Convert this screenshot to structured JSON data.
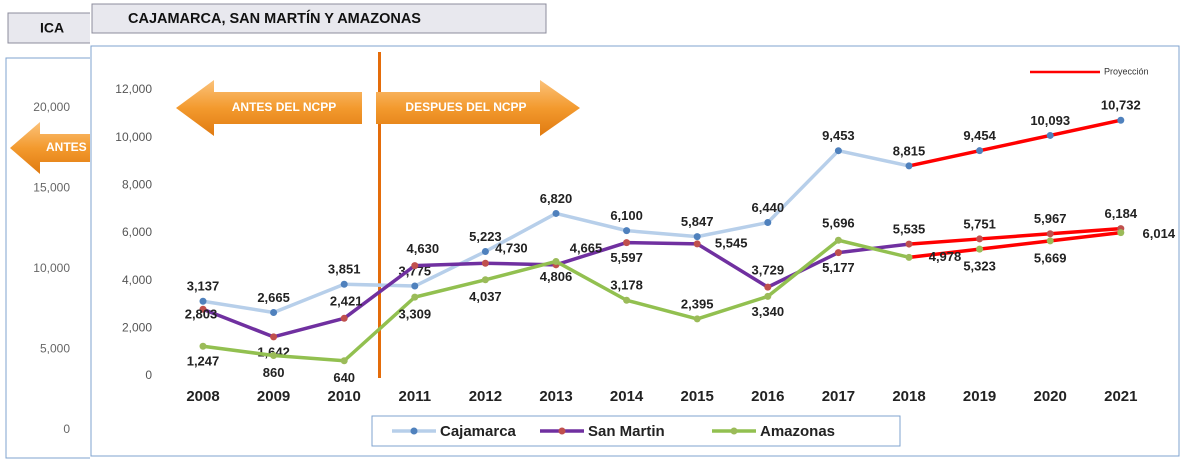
{
  "background_panel": {
    "title": "ICA",
    "yticks": [
      {
        "value": 20000,
        "label": "20,000"
      },
      {
        "value": 15000,
        "label": "15,000"
      },
      {
        "value": 10000,
        "label": "10,000"
      },
      {
        "value": 5000,
        "label": "5,000"
      },
      0
    ],
    "ylim": [
      0,
      20000
    ],
    "annotation": "ANTES DEL NCPP"
  },
  "chart_data": {
    "type": "line",
    "title": "CAJAMARCA, SAN MARTÍN Y AMAZONAS",
    "categories": [
      "2008",
      "2009",
      "2010",
      "2011",
      "2012",
      "2013",
      "2014",
      "2015",
      "2016",
      "2017",
      "2018",
      "2019",
      "2020",
      "2021"
    ],
    "series": [
      {
        "name": "Cajamarca",
        "color": "#b7cfea",
        "marker_color": "#4f81bd",
        "values": [
          3137,
          2665,
          3851,
          3775,
          5223,
          6820,
          6100,
          5847,
          6440,
          9453,
          8815,
          9454,
          10093,
          10732
        ],
        "value_labels": [
          "3,137",
          "2,665",
          "3,851",
          "3,775",
          "5,223",
          "6,820",
          "6,100",
          "5,847",
          "6,440",
          "9,453",
          "8,815",
          "9,454",
          "10,093",
          "10,732"
        ]
      },
      {
        "name": "San Martin",
        "color": "#7030a0",
        "marker_color": "#c0504d",
        "values": [
          2803,
          1642,
          2421,
          4630,
          4730,
          4665,
          5597,
          5545,
          3729,
          5177,
          5535,
          5751,
          5967,
          6184
        ],
        "value_labels": [
          "2,803",
          "1,642",
          "2,421",
          "4,630",
          "4,730",
          "4,665",
          "5,597",
          "5,545",
          "3,729",
          "5,177",
          "5,535",
          "5,751",
          "5,967",
          "6,184"
        ]
      },
      {
        "name": "Amazonas",
        "color": "#92c050",
        "marker_color": "#9bbb59",
        "values": [
          1247,
          860,
          640,
          3309,
          4037,
          4806,
          3178,
          2395,
          3340,
          5696,
          4978,
          5323,
          5669,
          6014
        ],
        "value_labels": [
          "1,247",
          "860",
          "640",
          "3,309",
          "4,037",
          "4,806",
          "3,178",
          "2,395",
          "3,340",
          "5,696",
          "4,978",
          "5,323",
          "5,669",
          "6,014"
        ]
      }
    ],
    "projection": {
      "name": "Proyección",
      "color": "#ff0000",
      "from": "2018"
    },
    "divider_color": "#e46c0a",
    "annotations": [
      "ANTES DEL NCPP",
      "DESPUES DEL NCPP"
    ],
    "ylim": [
      0,
      12000
    ],
    "yticks": [
      0,
      {
        "value": 2000,
        "label": "2,000"
      },
      {
        "value": 4000,
        "label": "4,000"
      },
      {
        "value": 6000,
        "label": "6,000"
      },
      {
        "value": 8000,
        "label": "8,000"
      },
      {
        "value": 10000,
        "label": "10,000"
      },
      {
        "value": 12000,
        "label": "12,000"
      }
    ],
    "legend": "bottom"
  }
}
